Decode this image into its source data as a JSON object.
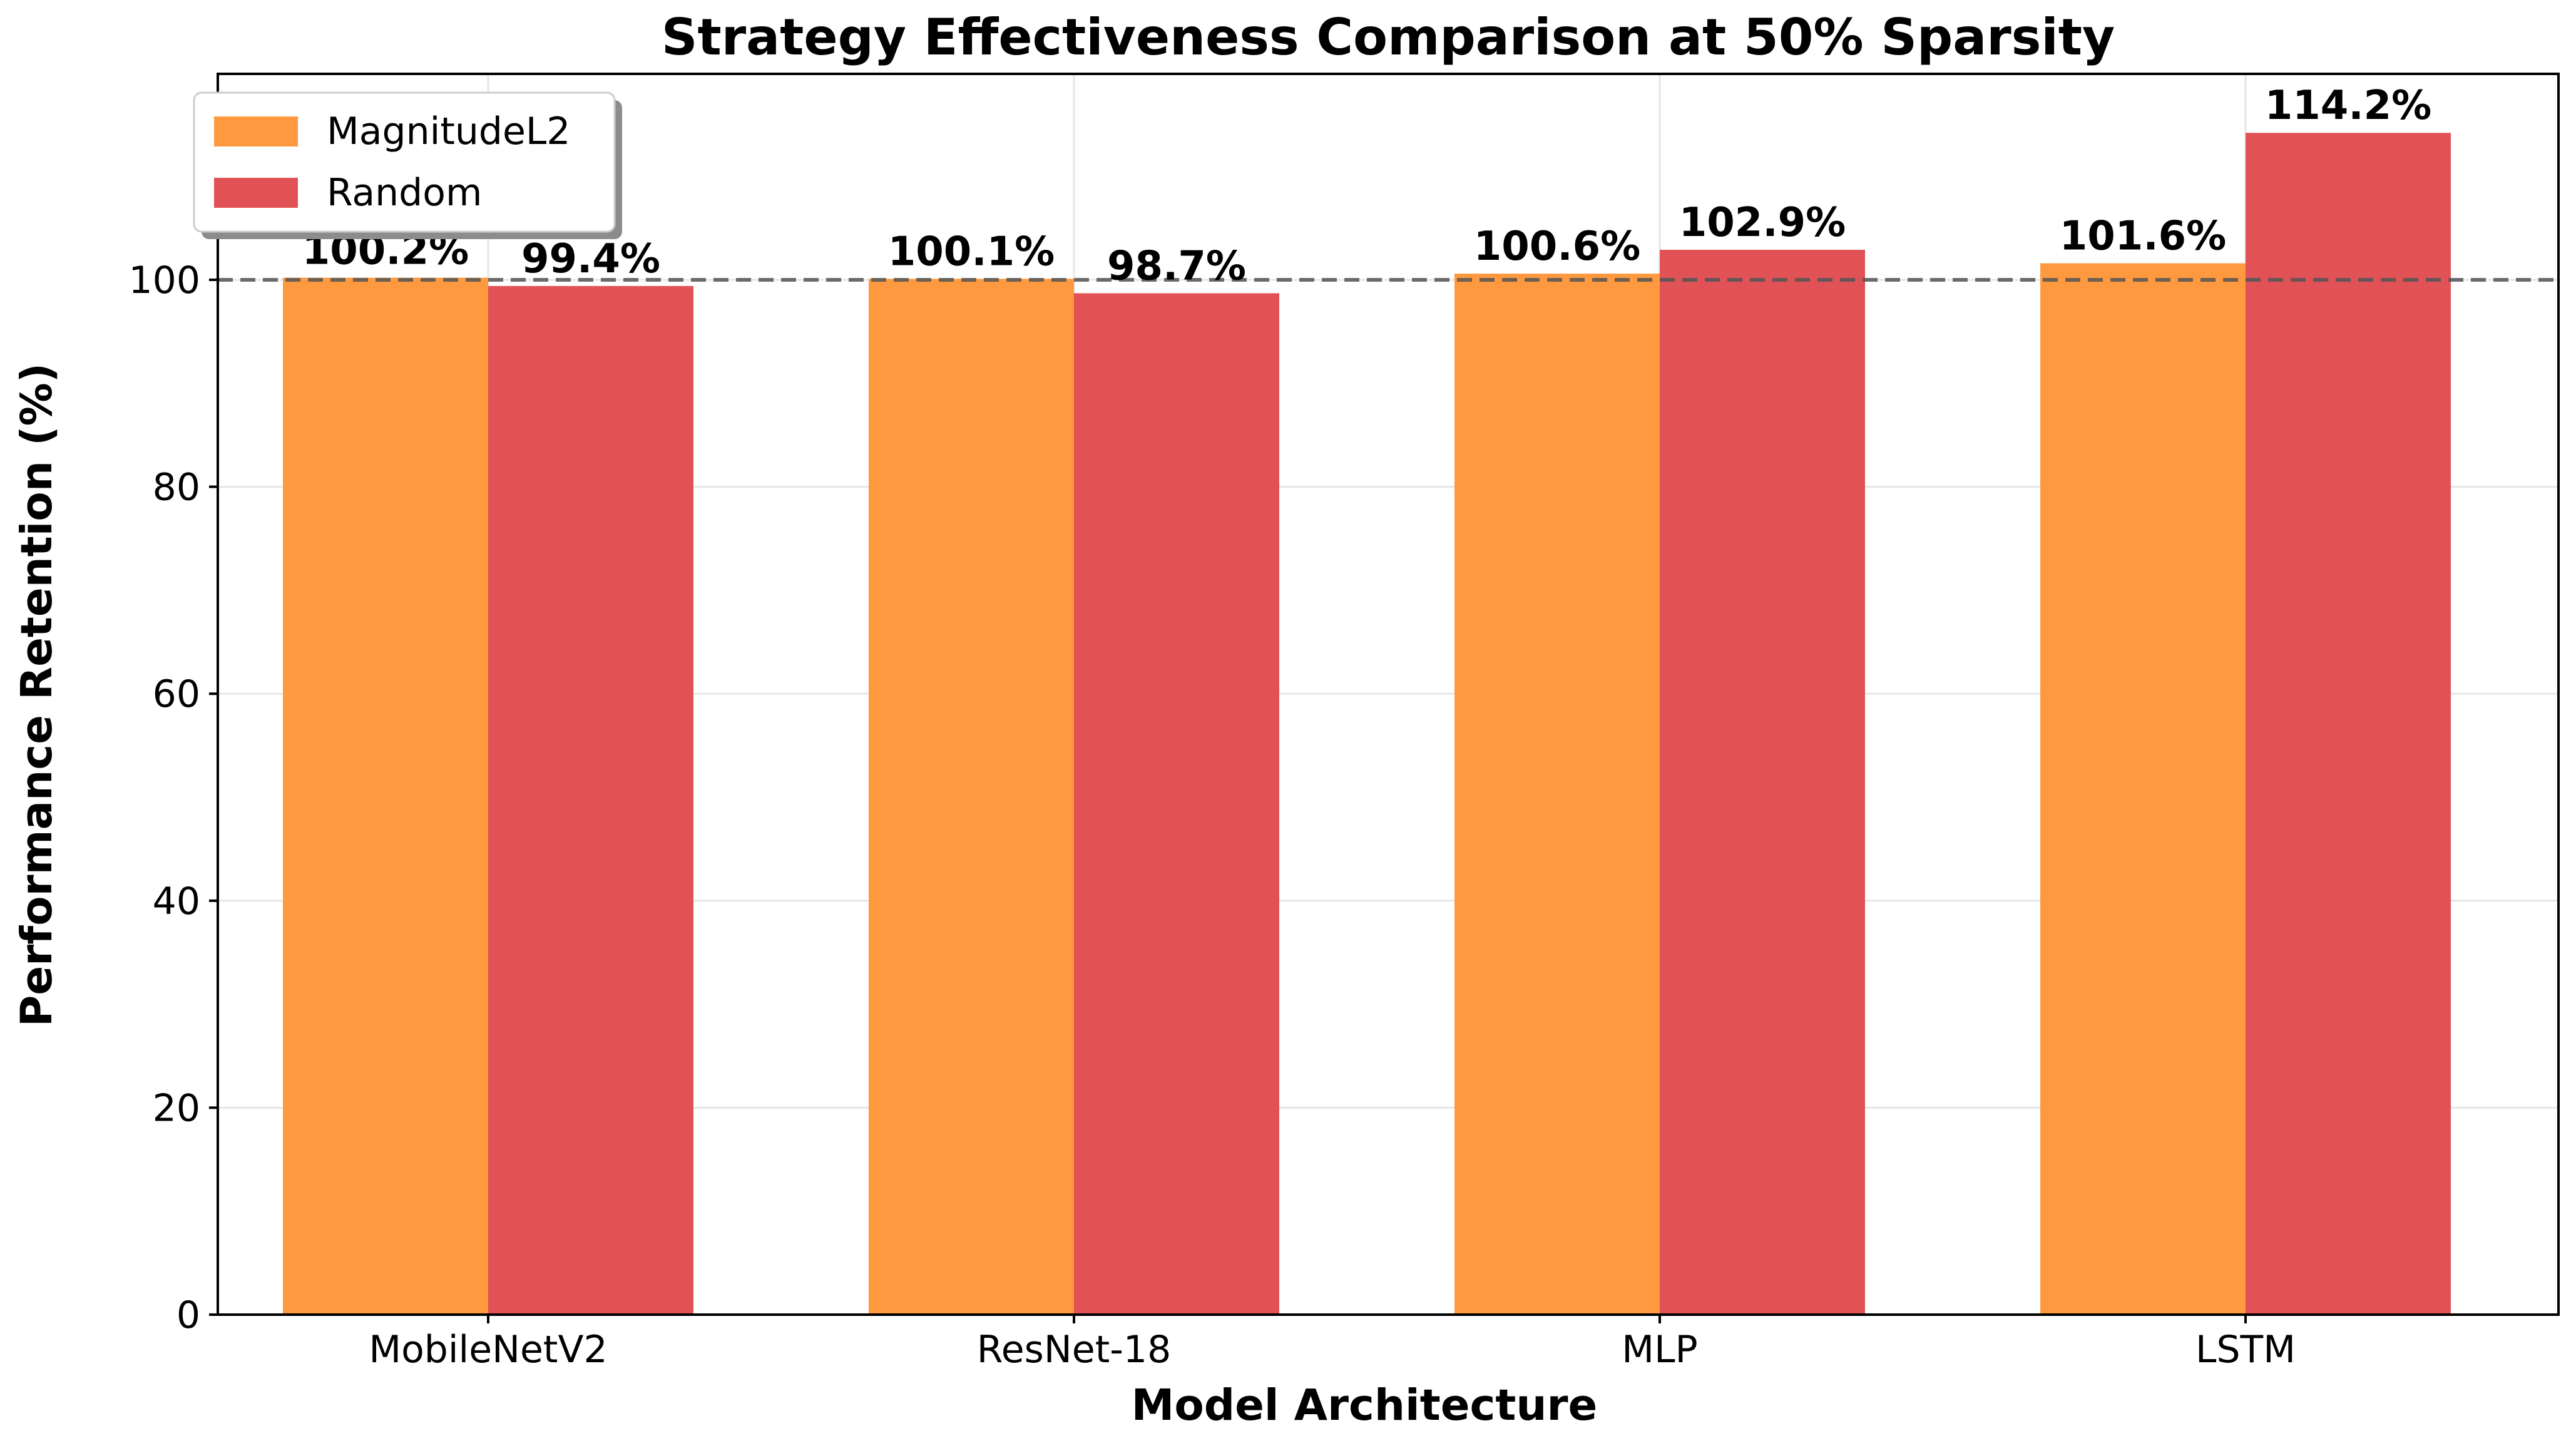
{
  "chart_data": {
    "type": "bar",
    "title": "Strategy Effectiveness Comparison at 50% Sparsity",
    "xlabel": "Model Architecture",
    "ylabel": "Performance Retention (%)",
    "categories": [
      "MobileNetV2",
      "ResNet-18",
      "MLP",
      "LSTM"
    ],
    "series": [
      {
        "name": "MagnitudeL2",
        "color": "#ff9940",
        "values": [
          100.2,
          100.1,
          100.6,
          101.6
        ],
        "labels": [
          "100.2%",
          "100.1%",
          "100.6%",
          "101.6%"
        ]
      },
      {
        "name": "Random",
        "color": "#e05255",
        "values": [
          99.4,
          98.7,
          102.9,
          114.2
        ],
        "labels": [
          "99.4%",
          "98.7%",
          "102.9%",
          "114.2%"
        ]
      }
    ],
    "ylim": [
      0,
      119.9
    ],
    "yticks": [
      0,
      20,
      40,
      60,
      80,
      100
    ],
    "reference_line": 100,
    "grid": true,
    "legend_position": "top-left"
  }
}
